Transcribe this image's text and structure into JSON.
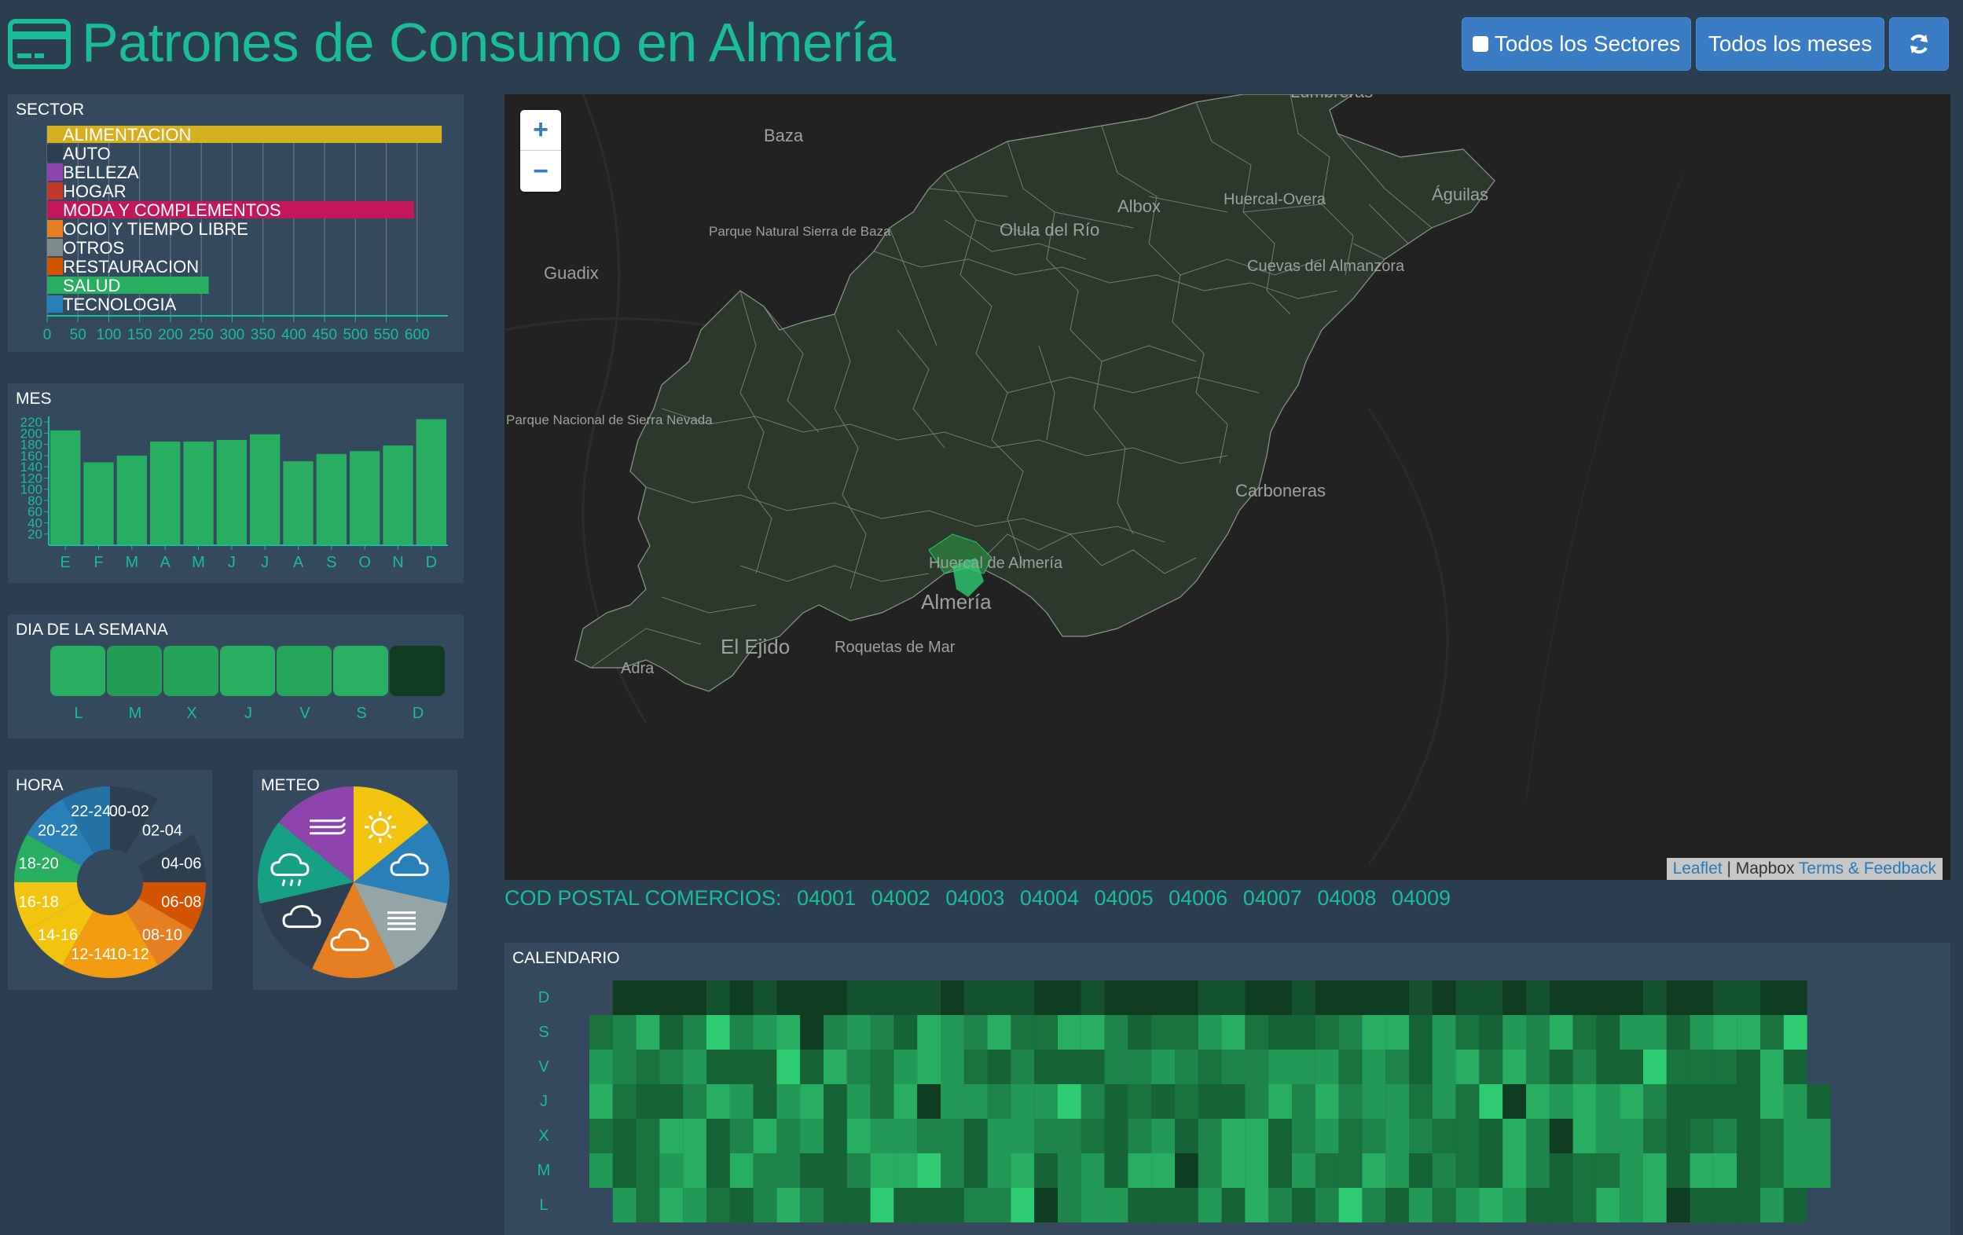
{
  "header": {
    "title": "Patrones de Consumo en Almería",
    "btn_sectores": "Todos los Sectores",
    "btn_meses": "Todos los meses",
    "refresh_icon": "refresh-icon"
  },
  "sector": {
    "title": "SECTOR",
    "items": [
      {
        "label": "ALIMENTACION",
        "value": 640,
        "color": "#d4b020"
      },
      {
        "label": "AUTO",
        "value": 0,
        "color": "#2c3e50"
      },
      {
        "label": "BELLEZA",
        "value": 0,
        "color": "#8e44ad"
      },
      {
        "label": "HOGAR",
        "value": 0,
        "color": "#c0392b"
      },
      {
        "label": "MODA Y COMPLEMENTOS",
        "value": 595,
        "color": "#c2185b"
      },
      {
        "label": "OCIO Y TIEMPO LIBRE",
        "value": 0,
        "color": "#e67e22"
      },
      {
        "label": "OTROS",
        "value": 0,
        "color": "#7f8c8d"
      },
      {
        "label": "RESTAURACION",
        "value": 0,
        "color": "#d35400"
      },
      {
        "label": "SALUD",
        "value": 262,
        "color": "#27ae60"
      },
      {
        "label": "TECNOLOGIA",
        "value": 0,
        "color": "#2980b9"
      }
    ],
    "ticks": [
      "0",
      "50",
      "100",
      "150",
      "200",
      "250",
      "300",
      "350",
      "400",
      "450",
      "500",
      "550",
      "600"
    ]
  },
  "mes": {
    "title": "MES",
    "labels": [
      "E",
      "F",
      "M",
      "A",
      "M",
      "J",
      "J",
      "A",
      "S",
      "O",
      "N",
      "D"
    ],
    "values": [
      205,
      148,
      160,
      185,
      185,
      188,
      198,
      150,
      163,
      168,
      178,
      225
    ],
    "yticks": [
      "20",
      "40",
      "60",
      "80",
      "100",
      "120",
      "140",
      "160",
      "180",
      "200",
      "220"
    ]
  },
  "dia": {
    "title": "DIA DE LA SEMANA",
    "labels": [
      "L",
      "M",
      "X",
      "J",
      "V",
      "S",
      "D"
    ],
    "colors": [
      "#27ae60",
      "#239d56",
      "#25a35a",
      "#27ae60",
      "#25a55a",
      "#29b063",
      "#0f3d22"
    ]
  },
  "hora": {
    "title": "HORA",
    "labels": [
      "00-02",
      "02-04",
      "04-06",
      "06-08",
      "08-10",
      "10-12",
      "12-14",
      "14-16",
      "16-18",
      "18-20",
      "20-22",
      "22-24"
    ]
  },
  "meteo": {
    "title": "METEO",
    "icons": [
      "sun-icon",
      "cloud-icon",
      "fog-icon",
      "sun-cloud-icon",
      "night-cloud-icon",
      "rain-icon",
      "wind-icon"
    ]
  },
  "map": {
    "places": [
      "Lumbreras",
      "Baza",
      "Águilas",
      "Huercal-Overa",
      "Albox",
      "Olula del Río",
      "Parque Natural Sierra de Baza",
      "Guadix",
      "Cuevas del Almanzora",
      "Parque Nacional de Sierra Nevada",
      "Carboneras",
      "Huercal de Almería",
      "Almería",
      "El Ejido",
      "Roquetas de Mar",
      "Adra"
    ],
    "attribution_leaflet": "Leaflet",
    "attribution_sep": " | Mapbox ",
    "attribution_terms": "Terms & Feedback"
  },
  "codpostal": {
    "label": "COD POSTAL COMERCIOS:",
    "codes": [
      "04001",
      "04002",
      "04003",
      "04004",
      "04005",
      "04006",
      "04007",
      "04008",
      "04009"
    ]
  },
  "calendario": {
    "title": "CALENDARIO",
    "days": [
      "D",
      "S",
      "V",
      "J",
      "X",
      "M",
      "L"
    ]
  }
}
